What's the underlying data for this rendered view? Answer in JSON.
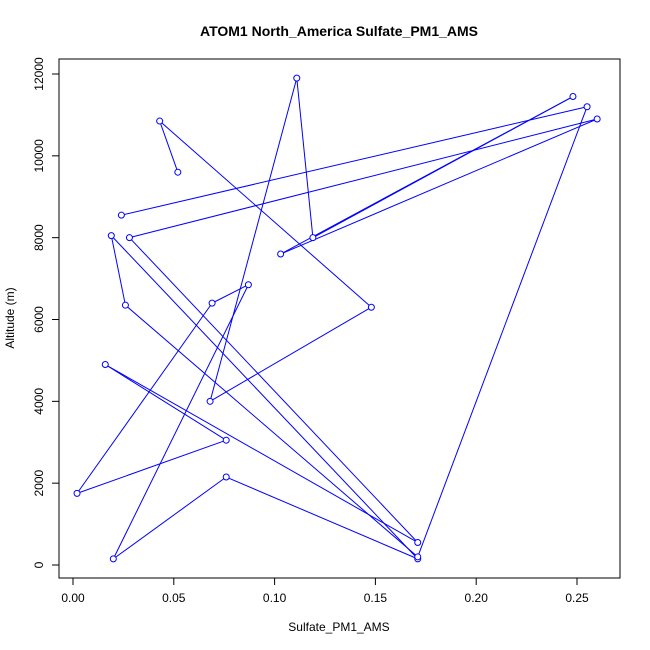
{
  "chart_data": {
    "type": "line",
    "title": "ATOM1 North_America Sulfate_PM1_AMS",
    "xlabel": "Sulfate_PM1_AMS",
    "ylabel": "Altitude (m)",
    "xlim": [
      0,
      0.26
    ],
    "ylim": [
      0,
      12000
    ],
    "xticks": [
      0.0,
      0.05,
      0.1,
      0.15,
      0.2,
      0.25
    ],
    "xtick_labels": [
      "0.00",
      "0.05",
      "0.10",
      "0.15",
      "0.20",
      "0.25"
    ],
    "yticks": [
      0,
      2000,
      4000,
      6000,
      8000,
      10000,
      12000
    ],
    "ytick_labels": [
      "0",
      "2000",
      "4000",
      "6000",
      "8000",
      "10000",
      "12000"
    ],
    "grid": false,
    "markers": "open-circle",
    "color": "#0000ff",
    "series": [
      {
        "x": [
          0.052,
          0.043,
          0.148,
          0.068,
          0.111,
          0.119,
          0.248,
          0.103,
          0.26,
          0.028,
          0.171,
          0.016,
          0.076,
          0.002,
          0.069,
          0.087,
          0.02,
          0.076,
          0.171,
          0.019,
          0.026,
          0.171,
          0.255,
          0.024
        ],
        "y": [
          9600,
          10850,
          6300,
          4000,
          11900,
          8000,
          11450,
          7600,
          10900,
          8000,
          550,
          4900,
          3050,
          1750,
          6400,
          6850,
          150,
          2150,
          150,
          8050,
          6350,
          200,
          11200,
          8550
        ]
      }
    ]
  }
}
